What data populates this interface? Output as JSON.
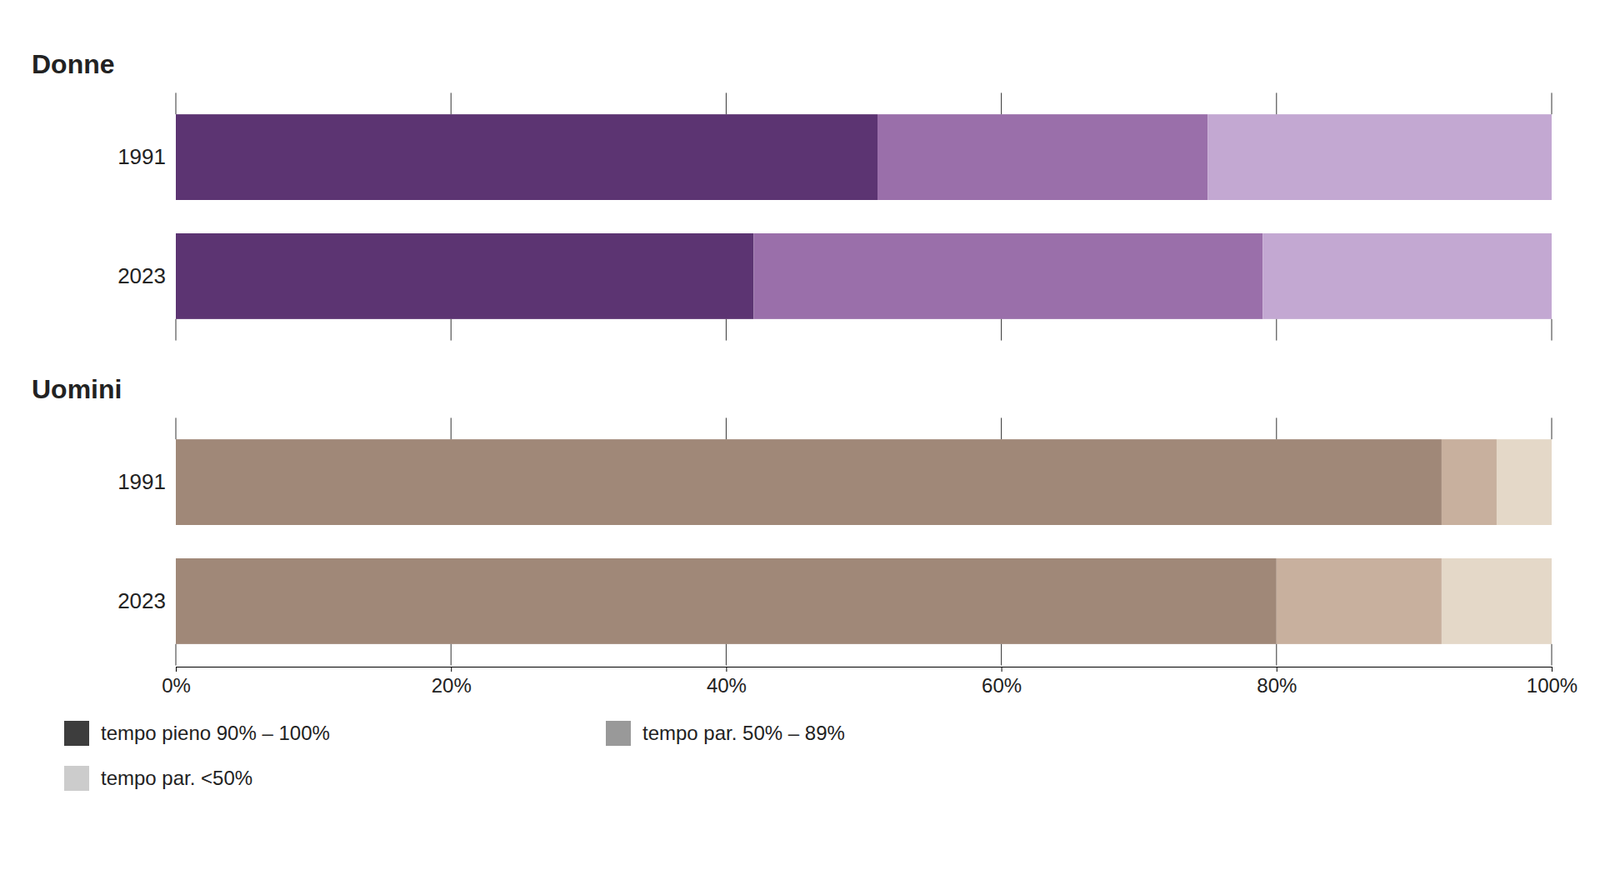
{
  "chart_data": [
    {
      "type": "bar",
      "title": "Donne",
      "orientation": "horizontal",
      "stacked": true,
      "categories": [
        "2023",
        "1991"
      ],
      "series": [
        {
          "colors": [
            "#5c3472",
            "#5c3472"
          ],
          "values": [
            42,
            51
          ]
        },
        {
          "colors": [
            "#9a6faa",
            "#9a6faa"
          ],
          "values": [
            37,
            24
          ]
        },
        {
          "colors": [
            "#c3a8d2",
            "#c3a8d2"
          ],
          "values": [
            21,
            25
          ]
        }
      ],
      "xlim": [
        0,
        100
      ],
      "xticks": [
        0,
        20,
        40,
        60,
        80,
        100
      ],
      "tick_labels": "y",
      "grid": false
    },
    {
      "type": "bar",
      "title": "Uomini",
      "orientation": "horizontal",
      "stacked": true,
      "categories": [
        "2023",
        "1991"
      ],
      "series": [
        {
          "name": "tempo pieno 90% – 100%",
          "color": "#3d3d3d",
          "colors": [
            "#a08878",
            "#a08878"
          ],
          "values": [
            80,
            92
          ]
        },
        {
          "name": "tempo par. 50% – 89%",
          "color": "#999999",
          "colors": [
            "#c8b09e",
            "#c8b09e"
          ],
          "values": [
            12,
            4
          ]
        },
        {
          "name": "tempo par. <50%",
          "color": "#cccccc",
          "colors": [
            "#e4d8c8",
            "#e4d8c8"
          ],
          "values": [
            8,
            4
          ]
        }
      ],
      "xlim": [
        0,
        100
      ],
      "xticks": [
        {
          "value": 0,
          "label": "0%"
        },
        {
          "value": 20,
          "label": "20%"
        },
        {
          "value": 40,
          "label": "40%"
        },
        {
          "value": 60,
          "label": "60%"
        },
        {
          "value": 80,
          "label": "80%"
        },
        {
          "value": 100,
          "label": "100%"
        }
      ],
      "grid": false,
      "legend": "bottom"
    }
  ]
}
